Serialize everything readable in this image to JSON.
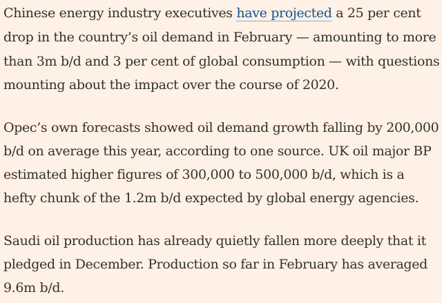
{
  "article": {
    "paragraphs": [
      {
        "lines": [
          {
            "before": "Chinese energy industry executives ",
            "link": "have projected",
            "after": " a 25 per cent"
          },
          {
            "text": "drop in the country’s oil demand in February — amounting to more"
          },
          {
            "text": "than 3m b/d and 3 per cent of global consumption — with questions"
          },
          {
            "text": "mounting about the impact over the course of 2020."
          }
        ]
      },
      {
        "lines": [
          {
            "text": "Opec’s own forecasts showed oil demand growth falling by 200,000"
          },
          {
            "text": "b/d on average this year, according to one source. UK oil major BP"
          },
          {
            "text": "estimated higher figures of 300,000 to 500,000 b/d, which is a"
          },
          {
            "text": "hefty chunk of the 1.2m b/d expected by global energy agencies."
          }
        ]
      },
      {
        "lines": [
          {
            "text": "Saudi oil production has already quietly fallen more deeply that it"
          },
          {
            "text": "pledged in December. Production so far in February has averaged"
          },
          {
            "text": "9.6m b/d."
          }
        ]
      }
    ]
  },
  "colors": {
    "background": "#fff1e5",
    "text": "#33302e",
    "link": "#0f5499"
  }
}
